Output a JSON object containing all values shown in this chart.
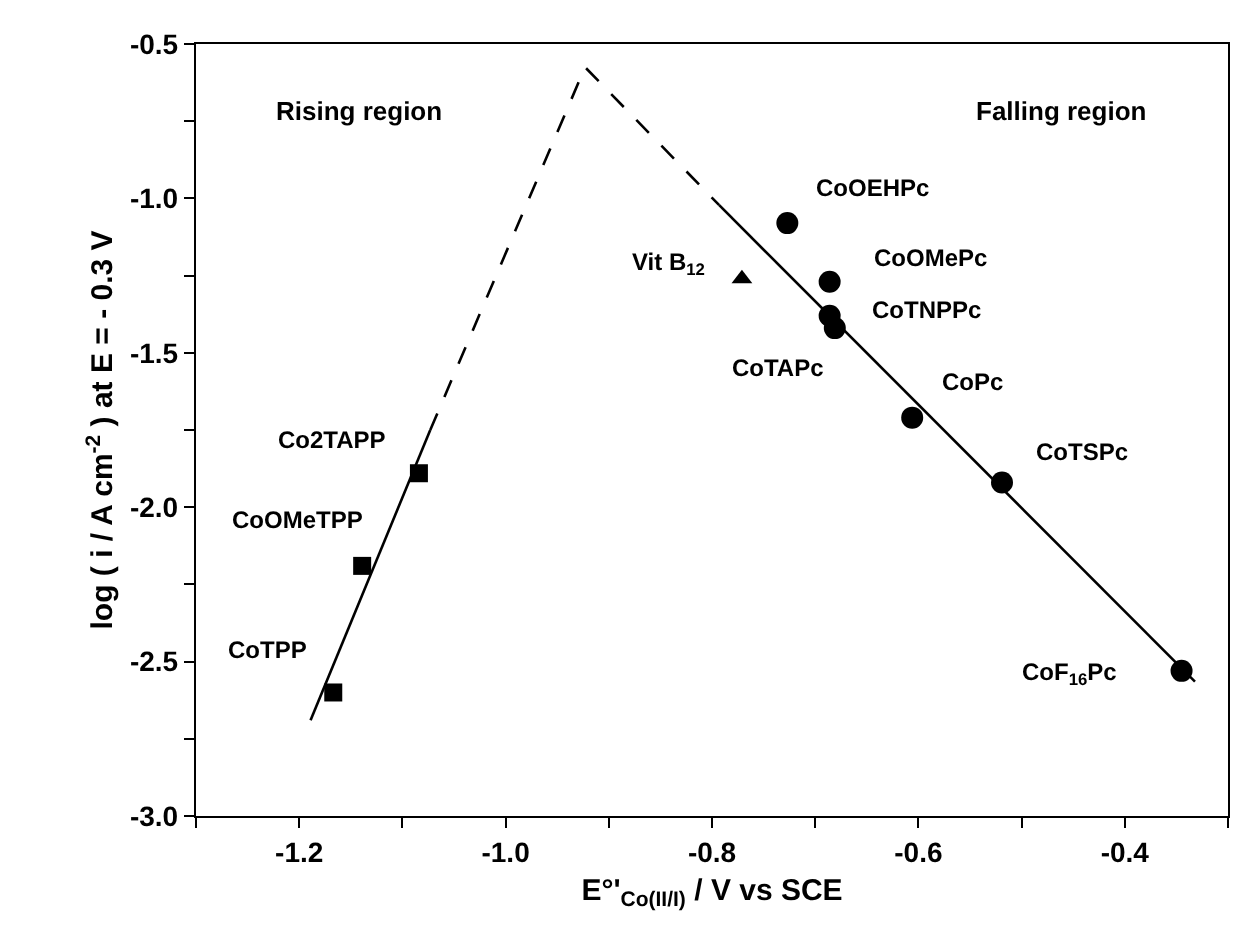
{
  "chart_data": {
    "type": "scatter",
    "xlabel": "E°'$_{Co(II/I)}$ / V vs SCE",
    "ylabel": "log ( i / A cm$^{-2}$ ) at E = - 0.3 V",
    "xlim": [
      -1.3,
      -0.3
    ],
    "xticks": [
      {
        "value": -1.3,
        "label": null
      },
      -1.2,
      {
        "value": -1.1,
        "label": null
      },
      {
        "value": -1.0,
        "label": "-1.0"
      },
      {
        "value": -0.9,
        "label": null
      },
      -0.8,
      {
        "value": -0.7,
        "label": null
      },
      -0.6,
      {
        "value": -0.5,
        "label": null
      },
      -0.4,
      {
        "value": -0.3,
        "label": null
      }
    ],
    "ylim": [
      -3.0,
      -0.5
    ],
    "yticks": [
      {
        "value": -3.0,
        "label": "-3.0"
      },
      {
        "value": -2.75,
        "label": null
      },
      -2.5,
      {
        "value": -2.25,
        "label": null
      },
      {
        "value": -2.0,
        "label": "-2.0"
      },
      {
        "value": -1.75,
        "label": null
      },
      -1.5,
      {
        "value": -1.25,
        "label": null
      },
      {
        "value": -1.0,
        "label": "-1.0"
      },
      {
        "value": -0.75,
        "label": null
      },
      -0.5
    ],
    "series": [
      {
        "type": "line",
        "color": "#000000",
        "line_style": "solid",
        "marker": "none",
        "x": [
          -1.189,
          -1.073
        ],
        "values": [
          -2.69,
          -1.75
        ]
      },
      {
        "type": "line",
        "color": "#000000",
        "line_style": "dashed",
        "marker": "none",
        "x": [
          -1.073,
          -0.923,
          -0.793
        ],
        "values": [
          -1.75,
          -0.575,
          -1.022
        ]
      },
      {
        "type": "line",
        "color": "#000000",
        "line_style": "solid",
        "marker": "none",
        "x": [
          -0.793,
          -0.332
        ],
        "values": [
          -1.022,
          -2.565
        ]
      },
      {
        "color": "#000000",
        "marker": "square",
        "x": [
          -1.167,
          -1.139,
          -1.084
        ],
        "values": [
          -2.6,
          -2.19,
          -1.89
        ]
      },
      {
        "color": "#000000",
        "marker": "circle",
        "x": [
          -0.727,
          -0.686,
          -0.686,
          -0.681,
          -0.606,
          -0.519,
          -0.345
        ],
        "values": [
          -1.08,
          -1.27,
          -1.38,
          -1.42,
          -1.71,
          -1.92,
          -2.53
        ]
      },
      {
        "color": "#000000",
        "marker": "triangle",
        "x": [
          -0.771
        ],
        "values": [
          -1.26
        ]
      }
    ],
    "annotations": [
      "Rising region",
      "Falling region",
      {
        "text": "CoOEHPc",
        "x": -0.727,
        "y": -1.08
      },
      {
        "text": "Vit B$_{12}$",
        "x": -0.771,
        "y": -1.26
      },
      {
        "text": "CoOMePc",
        "x": -0.686,
        "y": -1.27
      },
      {
        "text": "CoTNPPc",
        "x": -0.686,
        "y": -1.38
      },
      {
        "text": "CoTAPc",
        "x": -0.681,
        "y": -1.42
      },
      {
        "text": "CoPc",
        "x": -0.606,
        "y": -1.71
      },
      {
        "text": "CoTSPc",
        "x": -0.519,
        "y": -1.92
      },
      {
        "text": "CoF$_{16}$Pc",
        "x": -0.345,
        "y": -2.53
      },
      {
        "text": "Co2TAPP",
        "x": -1.084,
        "y": -1.89
      },
      {
        "text": "CoOMeTPP",
        "x": -1.139,
        "y": -2.19
      },
      {
        "text": "CoTPP",
        "x": -1.167,
        "y": -2.6
      }
    ]
  }
}
